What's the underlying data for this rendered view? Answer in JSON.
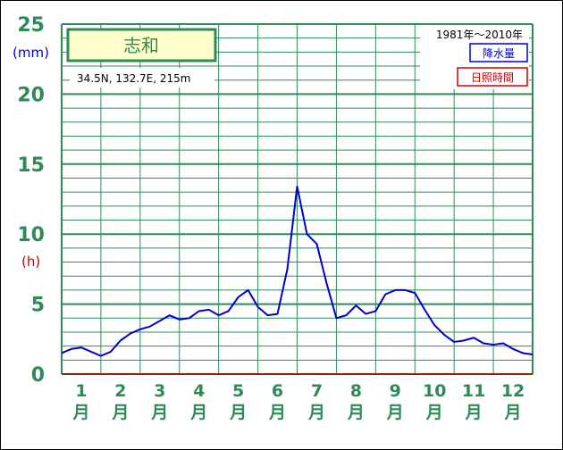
{
  "chart_data": {
    "type": "line",
    "station": "志和",
    "location": "34.5N,  132.7E,  215m",
    "period": "1981年〜2010年",
    "unit_left": "(mm)",
    "unit_right": "(h)",
    "ylim": [
      0,
      25
    ],
    "yticks": [
      "0",
      "5",
      "10",
      "15",
      "20",
      "25"
    ],
    "months": [
      {
        "num": "1",
        "unit": "月"
      },
      {
        "num": "2",
        "unit": "月"
      },
      {
        "num": "3",
        "unit": "月"
      },
      {
        "num": "4",
        "unit": "月"
      },
      {
        "num": "5",
        "unit": "月"
      },
      {
        "num": "6",
        "unit": "月"
      },
      {
        "num": "7",
        "unit": "月"
      },
      {
        "num": "8",
        "unit": "月"
      },
      {
        "num": "9",
        "unit": "月"
      },
      {
        "num": "10",
        "unit": "月"
      },
      {
        "num": "11",
        "unit": "月"
      },
      {
        "num": "12",
        "unit": "月"
      }
    ],
    "grid": true,
    "legend": [
      {
        "label": "降水量",
        "color": "#0000cc"
      },
      {
        "label": "日照時間",
        "color": "#cc0000"
      }
    ],
    "series": [
      {
        "name": "降水量",
        "color": "#0000cc",
        "x": [
          0.0,
          0.25,
          0.5,
          0.75,
          1.0,
          1.25,
          1.5,
          1.75,
          2.0,
          2.25,
          2.5,
          2.75,
          3.0,
          3.25,
          3.5,
          3.75,
          4.0,
          4.25,
          4.5,
          4.75,
          5.0,
          5.25,
          5.5,
          5.75,
          6.0,
          6.25,
          6.5,
          6.75,
          7.0,
          7.25,
          7.5,
          7.75,
          8.0,
          8.25,
          8.5,
          8.75,
          9.0,
          9.25,
          9.5,
          9.75,
          10.0,
          10.25,
          10.5,
          10.75,
          11.0,
          11.25,
          11.5,
          11.75,
          12.0
        ],
        "values": [
          1.5,
          1.8,
          1.9,
          1.6,
          1.3,
          1.6,
          2.4,
          2.9,
          3.2,
          3.4,
          3.8,
          4.2,
          3.9,
          4.0,
          4.5,
          4.6,
          4.2,
          4.5,
          5.5,
          6.0,
          4.8,
          4.2,
          4.3,
          7.5,
          13.4,
          10.0,
          9.3,
          6.5,
          4.0,
          4.2,
          4.9,
          4.3,
          4.5,
          5.7,
          6.0,
          6.0,
          5.8,
          4.6,
          3.5,
          2.8,
          2.3,
          2.4,
          2.6,
          2.2,
          2.1,
          2.2,
          1.8,
          1.5,
          1.4
        ]
      },
      {
        "name": "日照時間",
        "color": "#cc0000",
        "x": [],
        "values": []
      }
    ]
  }
}
